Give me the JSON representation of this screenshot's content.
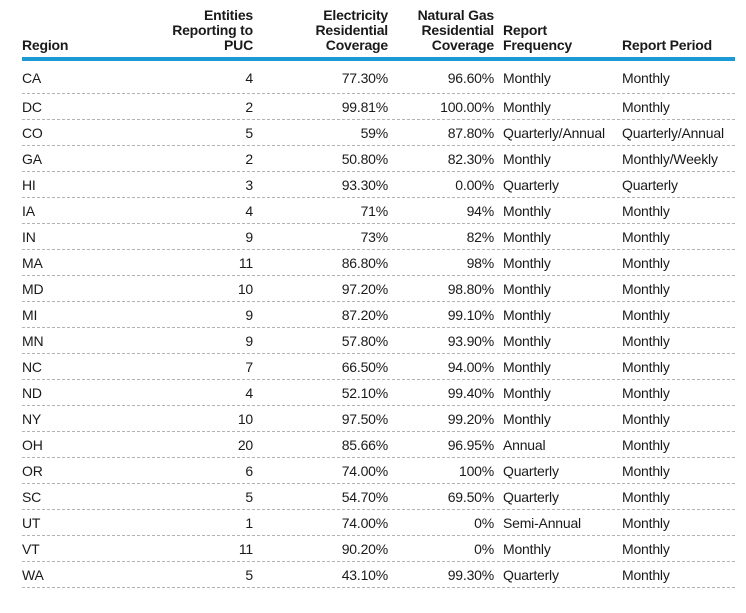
{
  "chart_data": {
    "type": "table",
    "title": "",
    "columns": [
      "Region",
      "Entities Reporting to PUC",
      "Electricity Residential Coverage",
      "Natural Gas Residential Coverage",
      "Report Frequency",
      "Report Period"
    ],
    "rows": [
      [
        "CA",
        "4",
        "77.30%",
        "96.60%",
        "Monthly",
        "Monthly"
      ],
      [
        "DC",
        "2",
        "99.81%",
        "100.00%",
        "Monthly",
        "Monthly"
      ],
      [
        "CO",
        "5",
        "59%",
        "87.80%",
        "Quarterly/Annual",
        "Quarterly/Annual"
      ],
      [
        "GA",
        "2",
        "50.80%",
        "82.30%",
        "Monthly",
        "Monthly/Weekly"
      ],
      [
        "HI",
        "3",
        "93.30%",
        "0.00%",
        "Quarterly",
        "Quarterly"
      ],
      [
        "IA",
        "4",
        "71%",
        "94%",
        "Monthly",
        "Monthly"
      ],
      [
        "IN",
        "9",
        "73%",
        "82%",
        "Monthly",
        "Monthly"
      ],
      [
        "MA",
        "11",
        "86.80%",
        "98%",
        "Monthly",
        "Monthly"
      ],
      [
        "MD",
        "10",
        "97.20%",
        "98.80%",
        "Monthly",
        "Monthly"
      ],
      [
        "MI",
        "9",
        "87.20%",
        "99.10%",
        "Monthly",
        "Monthly"
      ],
      [
        "MN",
        "9",
        "57.80%",
        "93.90%",
        "Monthly",
        "Monthly"
      ],
      [
        "NC",
        "7",
        "66.50%",
        "94.00%",
        "Monthly",
        "Monthly"
      ],
      [
        "ND",
        "4",
        "52.10%",
        "99.40%",
        "Monthly",
        "Monthly"
      ],
      [
        "NY",
        "10",
        "97.50%",
        "99.20%",
        "Monthly",
        "Monthly"
      ],
      [
        "OH",
        "20",
        "85.66%",
        "96.95%",
        "Annual",
        "Monthly"
      ],
      [
        "OR",
        "6",
        "74.00%",
        "100%",
        "Quarterly",
        "Monthly"
      ],
      [
        "SC",
        "5",
        "54.70%",
        "69.50%",
        "Quarterly",
        "Monthly"
      ],
      [
        "UT",
        "1",
        "74.00%",
        "0%",
        "Semi-Annual",
        "Monthly"
      ],
      [
        "VT",
        "11",
        "90.20%",
        "0%",
        "Monthly",
        "Monthly"
      ],
      [
        "WA",
        "5",
        "43.10%",
        "99.30%",
        "Quarterly",
        "Monthly"
      ]
    ]
  },
  "table": {
    "columns": [
      {
        "name": "region",
        "align": "left",
        "lines": [
          "Region"
        ]
      },
      {
        "name": "entities-reporting-to-puc",
        "align": "right",
        "lines": [
          "Entities",
          "Reporting to",
          "PUC"
        ]
      },
      {
        "name": "electricity-residential-coverage",
        "align": "right",
        "lines": [
          "Electricity",
          "Residential",
          "Coverage"
        ]
      },
      {
        "name": "natural-gas-residential-coverage",
        "align": "right",
        "lines": [
          "Natural Gas",
          "Residential",
          "Coverage"
        ]
      },
      {
        "name": "report-frequency",
        "align": "left",
        "lines": [
          "Report",
          "Frequency"
        ]
      },
      {
        "name": "report-period",
        "align": "left",
        "lines": [
          "Report Period"
        ]
      }
    ]
  },
  "colors": {
    "header_rule": "#1C9AD6",
    "row_divider": "#B3B3B3",
    "text": "#1A1A1A",
    "background": "#FFFFFF"
  }
}
